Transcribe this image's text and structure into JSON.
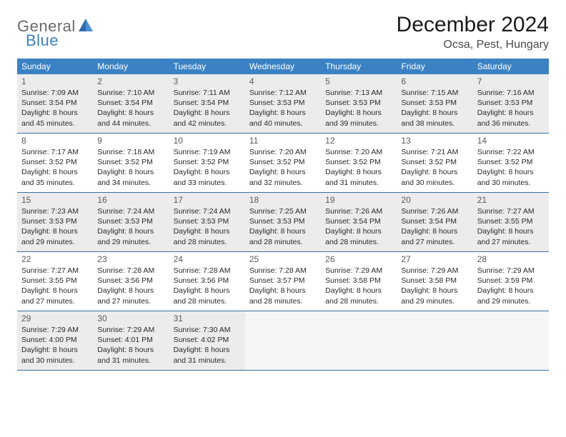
{
  "logo": {
    "part1": "General",
    "part2": "Blue"
  },
  "title": "December 2024",
  "location": "Ocsa, Pest, Hungary",
  "weekdays": [
    "Sunday",
    "Monday",
    "Tuesday",
    "Wednesday",
    "Thursday",
    "Friday",
    "Saturday"
  ],
  "header_bg": "#3b82c4",
  "divider_color": "#3b6ea0",
  "shaded_bg": "#ececec",
  "empty_bg": "#f6f6f6",
  "weeks": [
    {
      "shaded": true,
      "days": [
        {
          "n": "1",
          "sr": "7:09 AM",
          "ss": "3:54 PM",
          "dl": "8 hours and 45 minutes."
        },
        {
          "n": "2",
          "sr": "7:10 AM",
          "ss": "3:54 PM",
          "dl": "8 hours and 44 minutes."
        },
        {
          "n": "3",
          "sr": "7:11 AM",
          "ss": "3:54 PM",
          "dl": "8 hours and 42 minutes."
        },
        {
          "n": "4",
          "sr": "7:12 AM",
          "ss": "3:53 PM",
          "dl": "8 hours and 40 minutes."
        },
        {
          "n": "5",
          "sr": "7:13 AM",
          "ss": "3:53 PM",
          "dl": "8 hours and 39 minutes."
        },
        {
          "n": "6",
          "sr": "7:15 AM",
          "ss": "3:53 PM",
          "dl": "8 hours and 38 minutes."
        },
        {
          "n": "7",
          "sr": "7:16 AM",
          "ss": "3:53 PM",
          "dl": "8 hours and 36 minutes."
        }
      ]
    },
    {
      "shaded": false,
      "days": [
        {
          "n": "8",
          "sr": "7:17 AM",
          "ss": "3:52 PM",
          "dl": "8 hours and 35 minutes."
        },
        {
          "n": "9",
          "sr": "7:18 AM",
          "ss": "3:52 PM",
          "dl": "8 hours and 34 minutes."
        },
        {
          "n": "10",
          "sr": "7:19 AM",
          "ss": "3:52 PM",
          "dl": "8 hours and 33 minutes."
        },
        {
          "n": "11",
          "sr": "7:20 AM",
          "ss": "3:52 PM",
          "dl": "8 hours and 32 minutes."
        },
        {
          "n": "12",
          "sr": "7:20 AM",
          "ss": "3:52 PM",
          "dl": "8 hours and 31 minutes."
        },
        {
          "n": "13",
          "sr": "7:21 AM",
          "ss": "3:52 PM",
          "dl": "8 hours and 30 minutes."
        },
        {
          "n": "14",
          "sr": "7:22 AM",
          "ss": "3:52 PM",
          "dl": "8 hours and 30 minutes."
        }
      ]
    },
    {
      "shaded": true,
      "days": [
        {
          "n": "15",
          "sr": "7:23 AM",
          "ss": "3:53 PM",
          "dl": "8 hours and 29 minutes."
        },
        {
          "n": "16",
          "sr": "7:24 AM",
          "ss": "3:53 PM",
          "dl": "8 hours and 29 minutes."
        },
        {
          "n": "17",
          "sr": "7:24 AM",
          "ss": "3:53 PM",
          "dl": "8 hours and 28 minutes."
        },
        {
          "n": "18",
          "sr": "7:25 AM",
          "ss": "3:53 PM",
          "dl": "8 hours and 28 minutes."
        },
        {
          "n": "19",
          "sr": "7:26 AM",
          "ss": "3:54 PM",
          "dl": "8 hours and 28 minutes."
        },
        {
          "n": "20",
          "sr": "7:26 AM",
          "ss": "3:54 PM",
          "dl": "8 hours and 27 minutes."
        },
        {
          "n": "21",
          "sr": "7:27 AM",
          "ss": "3:55 PM",
          "dl": "8 hours and 27 minutes."
        }
      ]
    },
    {
      "shaded": false,
      "days": [
        {
          "n": "22",
          "sr": "7:27 AM",
          "ss": "3:55 PM",
          "dl": "8 hours and 27 minutes."
        },
        {
          "n": "23",
          "sr": "7:28 AM",
          "ss": "3:56 PM",
          "dl": "8 hours and 27 minutes."
        },
        {
          "n": "24",
          "sr": "7:28 AM",
          "ss": "3:56 PM",
          "dl": "8 hours and 28 minutes."
        },
        {
          "n": "25",
          "sr": "7:28 AM",
          "ss": "3:57 PM",
          "dl": "8 hours and 28 minutes."
        },
        {
          "n": "26",
          "sr": "7:29 AM",
          "ss": "3:58 PM",
          "dl": "8 hours and 28 minutes."
        },
        {
          "n": "27",
          "sr": "7:29 AM",
          "ss": "3:58 PM",
          "dl": "8 hours and 29 minutes."
        },
        {
          "n": "28",
          "sr": "7:29 AM",
          "ss": "3:59 PM",
          "dl": "8 hours and 29 minutes."
        }
      ]
    },
    {
      "shaded": true,
      "days": [
        {
          "n": "29",
          "sr": "7:29 AM",
          "ss": "4:00 PM",
          "dl": "8 hours and 30 minutes."
        },
        {
          "n": "30",
          "sr": "7:29 AM",
          "ss": "4:01 PM",
          "dl": "8 hours and 31 minutes."
        },
        {
          "n": "31",
          "sr": "7:30 AM",
          "ss": "4:02 PM",
          "dl": "8 hours and 31 minutes."
        },
        {
          "empty": true
        },
        {
          "empty": true
        },
        {
          "empty": true
        },
        {
          "empty": true
        }
      ]
    }
  ],
  "labels": {
    "sunrise": "Sunrise:",
    "sunset": "Sunset:",
    "daylight": "Daylight:"
  }
}
